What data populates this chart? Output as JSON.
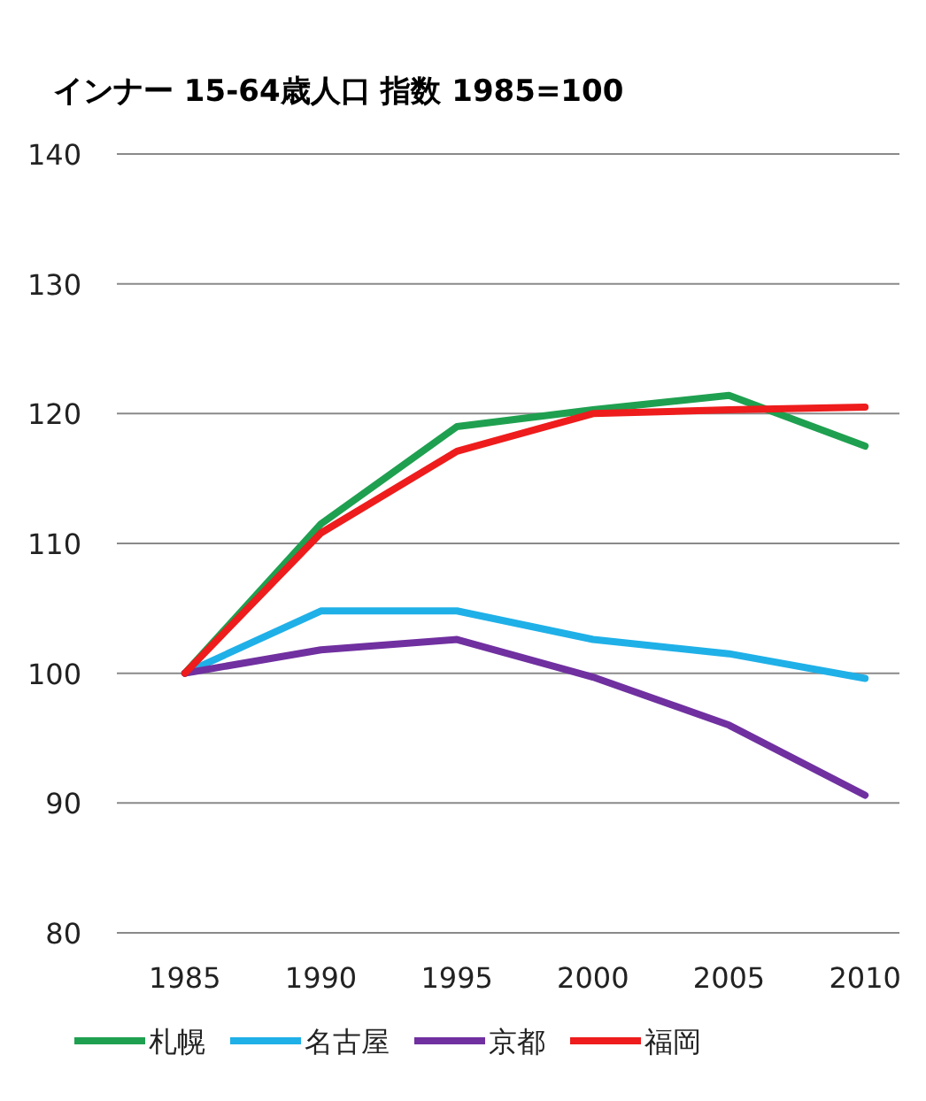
{
  "chart_data": {
    "type": "line",
    "title": "インナー 15-64歳人口 指数 1985=100",
    "categories": [
      "1985",
      "1990",
      "1995",
      "2000",
      "2005",
      "2010"
    ],
    "series": [
      {
        "name": "札幌",
        "color": "#1fa050",
        "values": [
          100,
          111.5,
          119,
          120.3,
          121.4,
          117.5
        ]
      },
      {
        "name": "名古屋",
        "color": "#1fb0e8",
        "values": [
          100,
          104.8,
          104.8,
          102.6,
          101.5,
          99.6
        ]
      },
      {
        "name": "京都",
        "color": "#7030a0",
        "values": [
          100,
          101.8,
          102.6,
          99.7,
          96,
          90.6
        ]
      },
      {
        "name": "福岡",
        "color": "#ee1c1c",
        "values": [
          100,
          110.8,
          117.1,
          120,
          120.3,
          120.5
        ]
      }
    ],
    "ylim": [
      80,
      140
    ],
    "yticks": [
      80,
      90,
      100,
      110,
      120,
      130,
      140
    ],
    "grid": "y",
    "legend": "bottom",
    "marker": "none"
  }
}
